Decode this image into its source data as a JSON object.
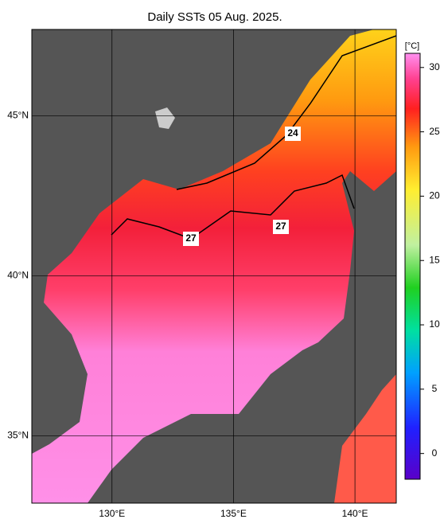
{
  "map": {
    "title": "Daily SSTs 05 Aug. 2025.",
    "lonlim": [
      126.7,
      141.7
    ],
    "latlim": [
      32.9,
      47.7
    ],
    "xticks": [
      {
        "value": 130,
        "label": "130°E"
      },
      {
        "value": 135,
        "label": "135°E"
      },
      {
        "value": 140,
        "label": "140°E"
      }
    ],
    "yticks": [
      {
        "value": 45,
        "label": "45°N"
      },
      {
        "value": 40,
        "label": "40°N"
      },
      {
        "value": 35,
        "label": "35°N"
      }
    ],
    "grid": true,
    "colorbar": {
      "unit": "[°C]",
      "lim": [
        -2,
        31.1
      ],
      "ticks": [
        30,
        25,
        20,
        15,
        10,
        5,
        0
      ]
    },
    "contour_labels": [
      24,
      27,
      27
    ]
  }
}
